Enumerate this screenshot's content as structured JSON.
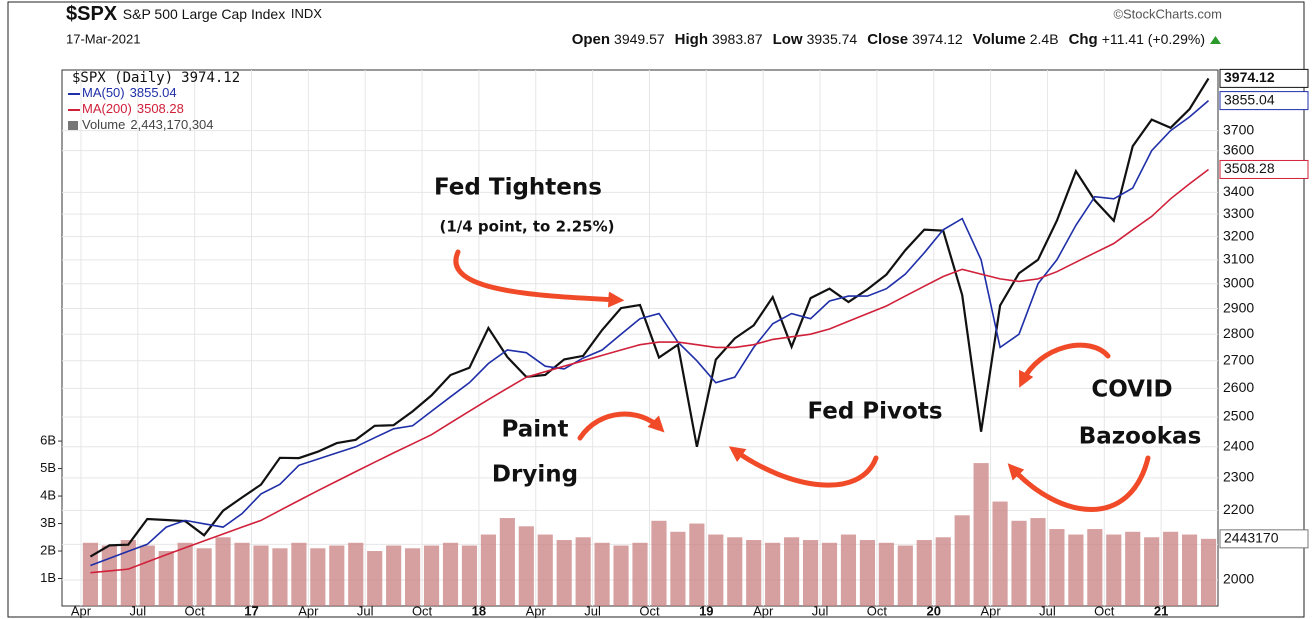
{
  "chart_data": {
    "type": "stock",
    "header": {
      "symbol": "$SPX",
      "name": "S&P 500 Large Cap Index",
      "exchange": "INDX",
      "source": "©StockCharts.com",
      "date": "17-Mar-2021",
      "quote": [
        {
          "label": "Open",
          "value": 3949.57
        },
        {
          "label": "High",
          "value": 3983.87
        },
        {
          "label": "Low",
          "value": 3935.74
        },
        {
          "label": "Close",
          "value": 3974.12
        },
        {
          "label": "Volume",
          "value": "2.4B"
        },
        {
          "label": "Chg",
          "value": "+11.41 (+0.29%)"
        }
      ]
    },
    "annotations": [
      "Fed Tightens",
      "(1/4 point, to 2.25%)",
      "Paint",
      "Drying",
      "Fed Pivots",
      "COVID",
      "Bazookas"
    ],
    "x": [
      "2016-04",
      "2016-05",
      "2016-06",
      "2016-07",
      "2016-08",
      "2016-09",
      "2016-10",
      "2016-11",
      "2016-12",
      "2017-01",
      "2017-02",
      "2017-03",
      "2017-04",
      "2017-05",
      "2017-06",
      "2017-07",
      "2017-08",
      "2017-09",
      "2017-10",
      "2017-11",
      "2017-12",
      "2018-01",
      "2018-02",
      "2018-03",
      "2018-04",
      "2018-05",
      "2018-06",
      "2018-07",
      "2018-08",
      "2018-09",
      "2018-10",
      "2018-11",
      "2018-12",
      "2019-01",
      "2019-02",
      "2019-03",
      "2019-04",
      "2019-05",
      "2019-06",
      "2019-07",
      "2019-08",
      "2019-09",
      "2019-10",
      "2019-11",
      "2019-12",
      "2020-01",
      "2020-02",
      "2020-03",
      "2020-04",
      "2020-05",
      "2020-06",
      "2020-07",
      "2020-08",
      "2020-09",
      "2020-10",
      "2020-11",
      "2020-12",
      "2021-01",
      "2021-02",
      "2021-03"
    ],
    "series": [
      {
        "name": "$SPX (Daily)",
        "color": "#111111",
        "values": [
          2065,
          2097,
          2099,
          2174,
          2171,
          2168,
          2126,
          2199,
          2239,
          2279,
          2364,
          2363,
          2384,
          2412,
          2423,
          2470,
          2472,
          2519,
          2575,
          2648,
          2674,
          2824,
          2714,
          2641,
          2648,
          2705,
          2718,
          2816,
          2902,
          2914,
          2712,
          2760,
          2400,
          2704,
          2784,
          2834,
          2946,
          2752,
          2942,
          2980,
          2926,
          2977,
          3038,
          3141,
          3231,
          3226,
          2954,
          2450,
          2912,
          3044,
          3100,
          3271,
          3500,
          3363,
          3270,
          3622,
          3756,
          3714,
          3811,
          3974.12
        ]
      },
      {
        "name": "MA(50)",
        "color": "#1f2fa8",
        "values": [
          2040,
          2060,
          2080,
          2100,
          2150,
          2170,
          2160,
          2150,
          2190,
          2250,
          2280,
          2340,
          2360,
          2380,
          2400,
          2430,
          2460,
          2470,
          2520,
          2570,
          2620,
          2690,
          2740,
          2730,
          2680,
          2670,
          2710,
          2740,
          2800,
          2860,
          2880,
          2770,
          2700,
          2620,
          2640,
          2750,
          2840,
          2880,
          2860,
          2930,
          2950,
          2950,
          2980,
          3040,
          3130,
          3230,
          3280,
          3100,
          2750,
          2800,
          3000,
          3100,
          3250,
          3380,
          3370,
          3420,
          3600,
          3700,
          3770,
          3855.04
        ]
      },
      {
        "name": "MA(200)",
        "color": "#d0203a",
        "values": [
          2020,
          2025,
          2030,
          2050,
          2070,
          2090,
          2110,
          2130,
          2150,
          2170,
          2200,
          2230,
          2260,
          2290,
          2320,
          2350,
          2380,
          2410,
          2440,
          2480,
          2520,
          2560,
          2600,
          2640,
          2660,
          2680,
          2700,
          2720,
          2740,
          2760,
          2770,
          2770,
          2760,
          2750,
          2750,
          2760,
          2780,
          2790,
          2800,
          2820,
          2850,
          2880,
          2910,
          2950,
          2990,
          3030,
          3060,
          3040,
          3020,
          3010,
          3020,
          3050,
          3090,
          3130,
          3170,
          3230,
          3290,
          3370,
          3440,
          3508.28
        ]
      },
      {
        "name": "Volume",
        "color": "#c98080",
        "axis": "y2",
        "last_label": "2,443,170,304",
        "marker_label": "2443170",
        "values": [
          2.3,
          2.2,
          2.4,
          2.2,
          2.0,
          2.3,
          2.1,
          2.5,
          2.3,
          2.2,
          2.1,
          2.3,
          2.1,
          2.2,
          2.3,
          2.0,
          2.2,
          2.1,
          2.2,
          2.3,
          2.2,
          2.6,
          3.2,
          2.9,
          2.6,
          2.4,
          2.5,
          2.3,
          2.2,
          2.3,
          3.1,
          2.7,
          3.0,
          2.6,
          2.5,
          2.4,
          2.3,
          2.5,
          2.4,
          2.3,
          2.6,
          2.4,
          2.3,
          2.2,
          2.4,
          2.5,
          3.3,
          5.2,
          3.8,
          3.1,
          3.2,
          2.8,
          2.6,
          2.8,
          2.6,
          2.7,
          2.5,
          2.7,
          2.6,
          2.443170304
        ]
      }
    ],
    "xlim": [
      "2016-03",
      "2021-04"
    ],
    "xticks": [
      {
        "value": "2016-04",
        "label": "Apr"
      },
      {
        "value": "2016-07",
        "label": "Jul"
      },
      {
        "value": "2016-10",
        "label": "Oct"
      },
      {
        "value": "2017-01",
        "label": "17"
      },
      {
        "value": "2017-04",
        "label": "Apr"
      },
      {
        "value": "2017-07",
        "label": "Jul"
      },
      {
        "value": "2017-10",
        "label": "Oct"
      },
      {
        "value": "2018-01",
        "label": "18"
      },
      {
        "value": "2018-04",
        "label": "Apr"
      },
      {
        "value": "2018-07",
        "label": "Jul"
      },
      {
        "value": "2018-10",
        "label": "Oct"
      },
      {
        "value": "2019-01",
        "label": "19"
      },
      {
        "value": "2019-04",
        "label": "Apr"
      },
      {
        "value": "2019-07",
        "label": "Jul"
      },
      {
        "value": "2019-10",
        "label": "Oct"
      },
      {
        "value": "2020-01",
        "label": "20"
      },
      {
        "value": "2020-04",
        "label": "Apr"
      },
      {
        "value": "2020-07",
        "label": "Jul"
      },
      {
        "value": "2020-10",
        "label": "Oct"
      },
      {
        "value": "2021-01",
        "label": "21"
      }
    ],
    "ylim": [
      1930,
      4020
    ],
    "yticks": [
      2000,
      2100,
      2200,
      2300,
      2400,
      2500,
      2600,
      2700,
      2800,
      2900,
      3000,
      3100,
      3200,
      3300,
      3400,
      3600,
      3700
    ],
    "ylog": true,
    "y2lim": [
      0,
      19.5
    ],
    "y2ticks": [
      {
        "value": 1,
        "label": "1B"
      },
      {
        "value": 2,
        "label": "2B"
      },
      {
        "value": 3,
        "label": "3B"
      },
      {
        "value": 4,
        "label": "4B"
      },
      {
        "value": 5,
        "label": "5B"
      },
      {
        "value": 6,
        "label": "6B"
      }
    ],
    "grid": true
  }
}
